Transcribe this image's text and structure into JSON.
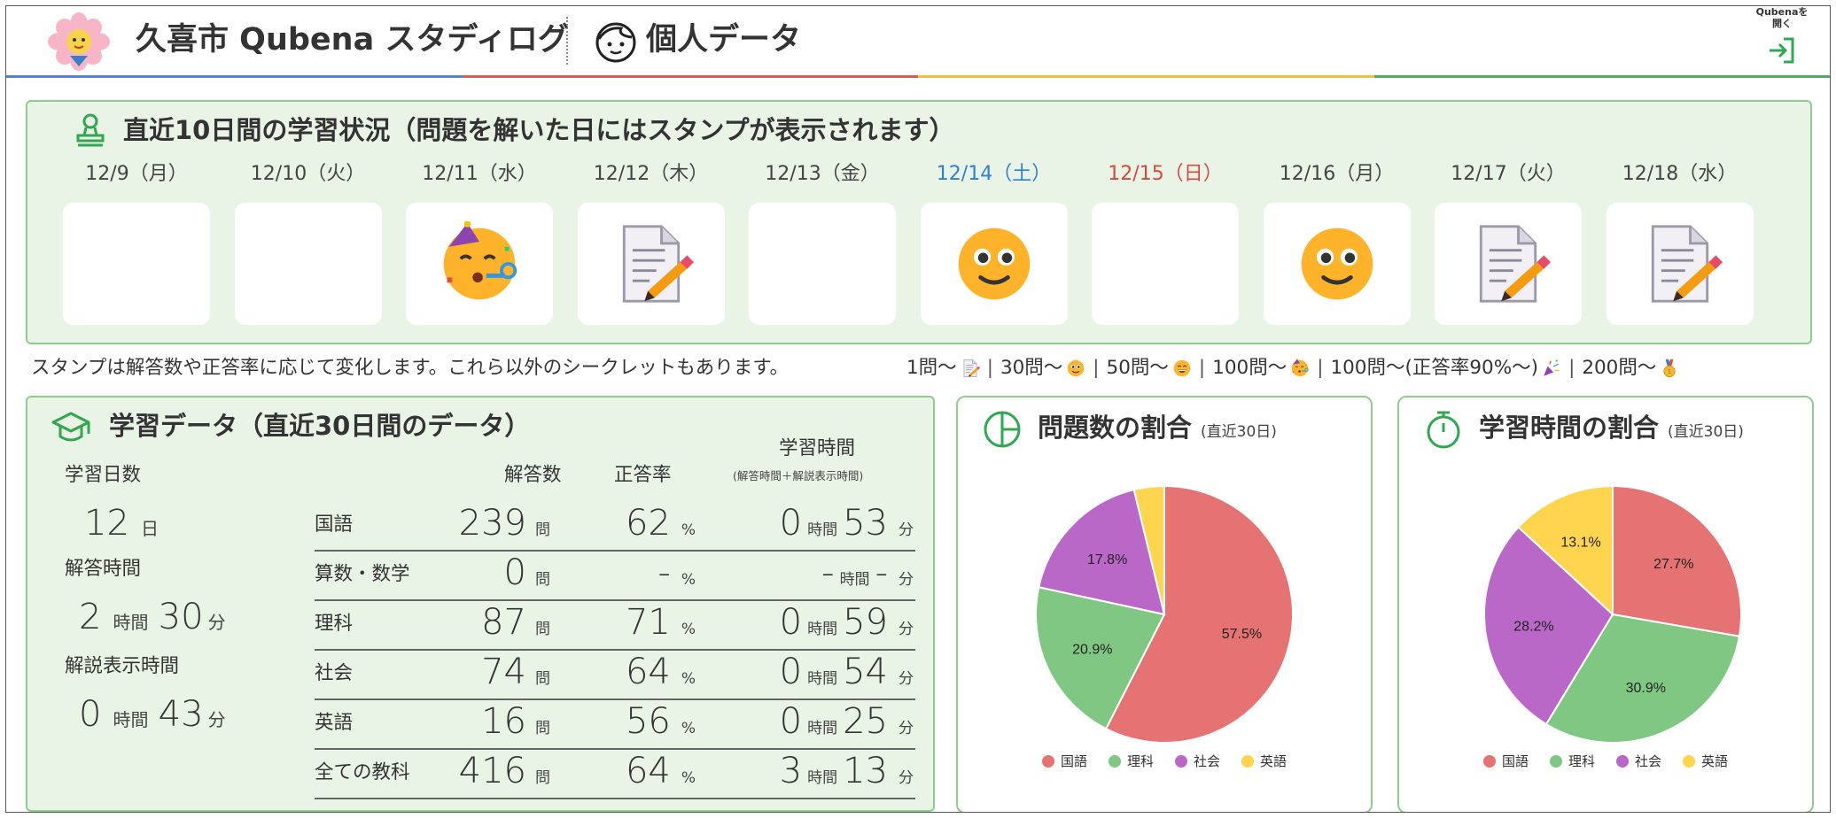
{
  "header": {
    "app_title": "久喜市 Qubena スタディログ",
    "page_title": "個人データ",
    "open_button_label": "Qubenaを\n開く",
    "stripe_colors": [
      "#4b87d6",
      "#e05a4f",
      "#f2c22e",
      "#4cb15f"
    ]
  },
  "stamps": {
    "title": "直近10日間の学習状況（問題を解いた日にはスタンプが表示されます）",
    "days": [
      {
        "date": "12/9（月）",
        "color": "#444444",
        "stamp": ""
      },
      {
        "date": "12/10（火）",
        "color": "#444444",
        "stamp": ""
      },
      {
        "date": "12/11（水）",
        "color": "#444444",
        "stamp": "party-face"
      },
      {
        "date": "12/12（木）",
        "color": "#444444",
        "stamp": "memo"
      },
      {
        "date": "12/13（金）",
        "color": "#444444",
        "stamp": ""
      },
      {
        "date": "12/14（土）",
        "color": "#2f7fd1",
        "stamp": "smile"
      },
      {
        "date": "12/15（日）",
        "color": "#d24a3f",
        "stamp": ""
      },
      {
        "date": "12/16（月）",
        "color": "#444444",
        "stamp": "smile"
      },
      {
        "date": "12/17（火）",
        "color": "#444444",
        "stamp": "memo"
      },
      {
        "date": "12/18（水）",
        "color": "#444444",
        "stamp": "memo"
      }
    ],
    "note": "スタンプは解答数や正答率に応じて変化します。これら以外のシークレットもあります。",
    "legend": [
      {
        "label": "1問〜",
        "icon": "memo"
      },
      {
        "label": "30問〜",
        "icon": "smile"
      },
      {
        "label": "50問〜",
        "icon": "grin"
      },
      {
        "label": "100問〜",
        "icon": "party-face"
      },
      {
        "label": "100問〜(正答率90%〜)",
        "icon": "popper"
      },
      {
        "label": "200問〜",
        "icon": "medal"
      }
    ]
  },
  "study": {
    "title": "学習データ（直近30日間のデータ）",
    "study_days_label": "学習日数",
    "study_days_value": "12",
    "study_days_unit": "日",
    "answer_time_label": "解答時間",
    "answer_time_hours": "2",
    "answer_time_minutes": "30",
    "explain_time_label": "解説表示時間",
    "explain_time_hours": "0",
    "explain_time_minutes": "43",
    "unit_hours": "時間",
    "unit_minutes": "分",
    "unit_minutes_small": "分",
    "unit_questions": "問",
    "unit_percent": "%",
    "col_answers": "解答数",
    "col_rate": "正答率",
    "col_time": "学習時間",
    "col_time_sub": "(解答時間＋解説表示時間)",
    "rows": [
      {
        "subject": "国語",
        "answers": "239",
        "rate": "62",
        "hours": "0",
        "minutes": "53"
      },
      {
        "subject": "算数・数学",
        "answers": "0",
        "rate": "-",
        "hours": "-",
        "minutes": "-"
      },
      {
        "subject": "理科",
        "answers": "87",
        "rate": "71",
        "hours": "0",
        "minutes": "59"
      },
      {
        "subject": "社会",
        "answers": "74",
        "rate": "64",
        "hours": "0",
        "minutes": "54"
      },
      {
        "subject": "英語",
        "answers": "16",
        "rate": "56",
        "hours": "0",
        "minutes": "25"
      },
      {
        "subject": "全ての教科",
        "answers": "416",
        "rate": "64",
        "hours": "3",
        "minutes": "13"
      }
    ]
  },
  "chart_data": [
    {
      "type": "pie",
      "title": "問題数の割合",
      "subtitle": "(直近30日)",
      "categories": [
        "国語",
        "理科",
        "社会",
        "英語"
      ],
      "values": [
        57.5,
        20.9,
        17.8,
        3.8
      ],
      "labels": [
        "57.5%",
        "20.9%",
        "17.8%",
        ""
      ],
      "colors": [
        "#e57373",
        "#81c784",
        "#ba68c8",
        "#ffd54f"
      ],
      "legend": "bottom"
    },
    {
      "type": "pie",
      "title": "学習時間の割合",
      "subtitle": "(直近30日)",
      "categories": [
        "国語",
        "理科",
        "社会",
        "英語"
      ],
      "values": [
        27.7,
        30.9,
        28.2,
        13.1
      ],
      "labels": [
        "27.7%",
        "30.9%",
        "28.2%",
        "13.1%"
      ],
      "colors": [
        "#e57373",
        "#81c784",
        "#ba68c8",
        "#ffd54f"
      ],
      "legend": "bottom"
    }
  ]
}
